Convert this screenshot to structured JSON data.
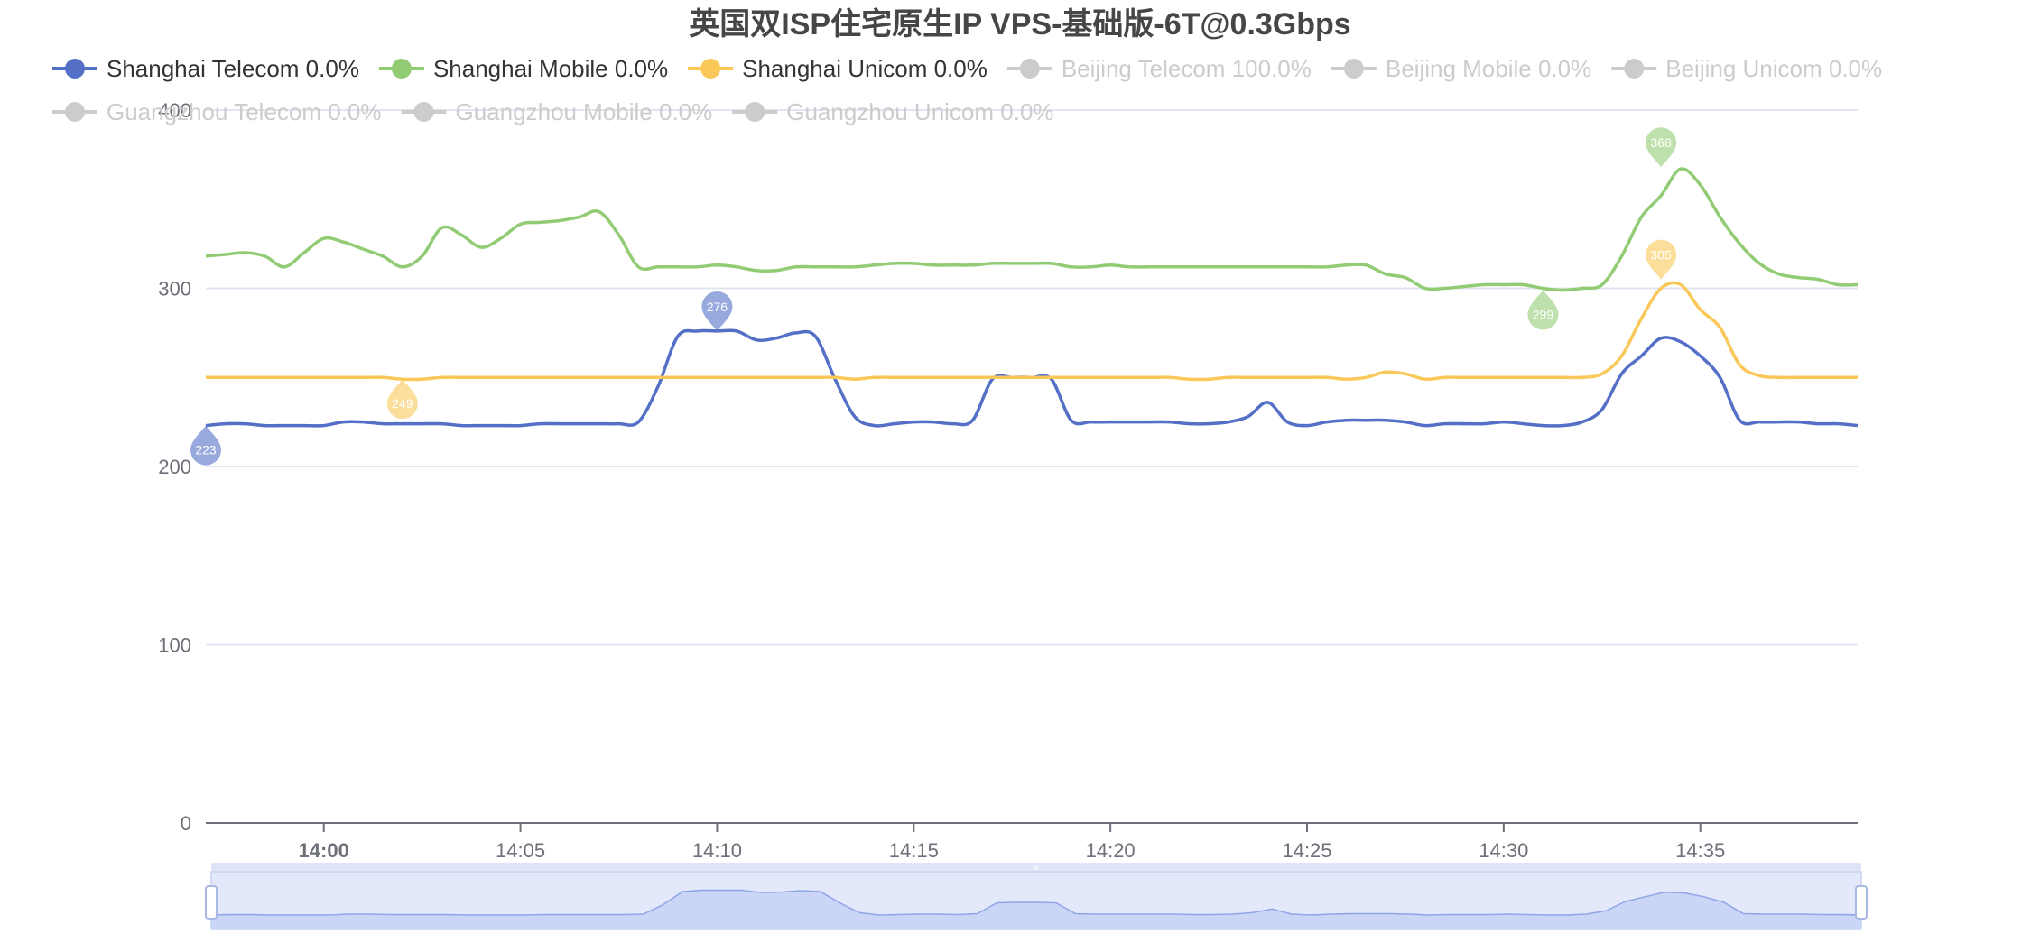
{
  "chart_data": {
    "type": "line",
    "title": "英国双ISP住宅原生IP VPS-基础版-6T@0.3Gbps",
    "x_ticks": [
      {
        "label": "14:00",
        "t": 0,
        "bold": true
      },
      {
        "label": "14:05",
        "t": 5
      },
      {
        "label": "14:10",
        "t": 10
      },
      {
        "label": "14:15",
        "t": 15
      },
      {
        "label": "14:20",
        "t": 20
      },
      {
        "label": "14:25",
        "t": 25
      },
      {
        "label": "14:30",
        "t": 30
      },
      {
        "label": "14:35",
        "t": 35
      }
    ],
    "x_range": [
      -3,
      39
    ],
    "ylim": [
      0,
      400
    ],
    "y_ticks": [
      0,
      100,
      200,
      300,
      400
    ],
    "grid": true,
    "legend_position": "top",
    "series": [
      {
        "name": "Shanghai Telecom 0.0%",
        "color": "#5470c6",
        "active": true,
        "x": [
          -3,
          -2.5,
          -2,
          -1.5,
          -1,
          -0.5,
          0,
          0.5,
          1,
          1.5,
          2,
          2.5,
          3,
          3.5,
          4,
          4.5,
          5,
          5.5,
          6,
          6.5,
          7,
          7.5,
          8,
          8.5,
          9,
          9.5,
          10,
          10.5,
          11,
          11.5,
          12,
          12.5,
          13,
          13.5,
          14,
          14.5,
          15,
          15.5,
          16,
          16.5,
          17,
          17.5,
          18,
          18.5,
          19,
          19.5,
          20,
          20.5,
          21,
          21.5,
          22,
          22.5,
          23,
          23.5,
          24,
          24.5,
          25,
          25.5,
          26,
          26.5,
          27,
          27.5,
          28,
          28.5,
          29,
          29.5,
          30,
          30.5,
          31,
          31.5,
          32,
          32.5,
          33,
          33.5,
          34,
          34.5,
          35,
          35.5,
          36,
          36.5,
          37,
          37.5,
          38,
          38.5,
          39
        ],
        "values": [
          223,
          224,
          224,
          223,
          223,
          223,
          223,
          225,
          225,
          224,
          224,
          224,
          224,
          223,
          223,
          223,
          223,
          224,
          224,
          224,
          224,
          224,
          225,
          245,
          273,
          276,
          276,
          276,
          271,
          272,
          275,
          273,
          249,
          228,
          223,
          224,
          225,
          225,
          224,
          226,
          249,
          250,
          250,
          249,
          226,
          225,
          225,
          225,
          225,
          225,
          224,
          224,
          225,
          228,
          236,
          225,
          223,
          225,
          226,
          226,
          226,
          225,
          223,
          224,
          224,
          224,
          225,
          224,
          223,
          223,
          225,
          232,
          252,
          262,
          272,
          270,
          262,
          250,
          226,
          225,
          225,
          225,
          224,
          224,
          223
        ],
        "markers": [
          {
            "x": -3,
            "value": 223,
            "label": "223"
          },
          {
            "x": 10,
            "value": 276,
            "label": "276"
          }
        ]
      },
      {
        "name": "Shanghai Mobile 0.0%",
        "color": "#91cc75",
        "active": true,
        "x": [
          -3,
          -2.5,
          -2,
          -1.5,
          -1,
          -0.5,
          0,
          0.5,
          1,
          1.5,
          2,
          2.5,
          3,
          3.5,
          4,
          4.5,
          5,
          5.5,
          6,
          6.5,
          7,
          7.5,
          8,
          8.5,
          9,
          9.5,
          10,
          10.5,
          11,
          11.5,
          12,
          12.5,
          13,
          13.5,
          14,
          14.5,
          15,
          15.5,
          16,
          16.5,
          17,
          17.5,
          18,
          18.5,
          19,
          19.5,
          20,
          20.5,
          21,
          21.5,
          22,
          22.5,
          23,
          23.5,
          24,
          24.5,
          25,
          25.5,
          26,
          26.5,
          27,
          27.5,
          28,
          28.5,
          29,
          29.5,
          30,
          30.5,
          31,
          31.5,
          32,
          32.5,
          33,
          33.5,
          34,
          34.5,
          35,
          35.5,
          36,
          36.5,
          37,
          37.5,
          38,
          38.5,
          39
        ],
        "values": [
          318,
          319,
          320,
          318,
          312,
          320,
          328,
          326,
          322,
          318,
          312,
          318,
          334,
          330,
          323,
          328,
          336,
          337,
          338,
          340,
          343,
          330,
          312,
          312,
          312,
          312,
          313,
          312,
          310,
          310,
          312,
          312,
          312,
          312,
          313,
          314,
          314,
          313,
          313,
          313,
          314,
          314,
          314,
          314,
          312,
          312,
          313,
          312,
          312,
          312,
          312,
          312,
          312,
          312,
          312,
          312,
          312,
          312,
          313,
          313,
          308,
          306,
          300,
          300,
          301,
          302,
          302,
          302,
          300,
          299,
          300,
          302,
          318,
          340,
          352,
          367,
          358,
          340,
          325,
          314,
          308,
          306,
          305,
          302,
          302
        ],
        "markers": [
          {
            "x": 34,
            "value": 368,
            "label": "368"
          },
          {
            "x": 31,
            "value": 299,
            "label": "299"
          }
        ]
      },
      {
        "name": "Shanghai Unicom 0.0%",
        "color": "#fac858",
        "active": true,
        "x": [
          -3,
          -2.5,
          -2,
          -1.5,
          -1,
          -0.5,
          0,
          0.5,
          1,
          1.5,
          2,
          2.5,
          3,
          3.5,
          4,
          4.5,
          5,
          5.5,
          6,
          6.5,
          7,
          7.5,
          8,
          8.5,
          9,
          9.5,
          10,
          10.5,
          11,
          11.5,
          12,
          12.5,
          13,
          13.5,
          14,
          14.5,
          15,
          15.5,
          16,
          16.5,
          17,
          17.5,
          18,
          18.5,
          19,
          19.5,
          20,
          20.5,
          21,
          21.5,
          22,
          22.5,
          23,
          23.5,
          24,
          24.5,
          25,
          25.5,
          26,
          26.5,
          27,
          27.5,
          28,
          28.5,
          29,
          29.5,
          30,
          30.5,
          31,
          31.5,
          32,
          32.5,
          33,
          33.5,
          34,
          34.5,
          35,
          35.5,
          36,
          36.5,
          37,
          37.5,
          38,
          38.5,
          39
        ],
        "values": [
          250,
          250,
          250,
          250,
          250,
          250,
          250,
          250,
          250,
          250,
          249,
          249,
          250,
          250,
          250,
          250,
          250,
          250,
          250,
          250,
          250,
          250,
          250,
          250,
          250,
          250,
          250,
          250,
          250,
          250,
          250,
          250,
          250,
          249,
          250,
          250,
          250,
          250,
          250,
          250,
          250,
          250,
          250,
          250,
          250,
          250,
          250,
          250,
          250,
          250,
          249,
          249,
          250,
          250,
          250,
          250,
          250,
          250,
          249,
          250,
          253,
          252,
          249,
          250,
          250,
          250,
          250,
          250,
          250,
          250,
          250,
          252,
          262,
          283,
          300,
          302,
          288,
          278,
          257,
          251,
          250,
          250,
          250,
          250,
          250
        ],
        "markers": [
          {
            "x": 2,
            "value": 249,
            "label": "249"
          },
          {
            "x": 34,
            "value": 305,
            "label": "305"
          }
        ]
      },
      {
        "name": "Beijing Telecom 100.0%",
        "color": "#cccccc",
        "active": false
      },
      {
        "name": "Beijing Mobile 0.0%",
        "color": "#cccccc",
        "active": false
      },
      {
        "name": "Beijing Unicom 0.0%",
        "color": "#cccccc",
        "active": false
      },
      {
        "name": "Guangzhou Telecom 0.0%",
        "color": "#cccccc",
        "active": false
      },
      {
        "name": "Guangzhou Mobile 0.0%",
        "color": "#cccccc",
        "active": false
      },
      {
        "name": "Guangzhou Unicom 0.0%",
        "color": "#cccccc",
        "active": false
      }
    ],
    "data_zoom": {
      "start_percent": 0,
      "end_percent": 100,
      "handle_glyph": "≡"
    }
  }
}
